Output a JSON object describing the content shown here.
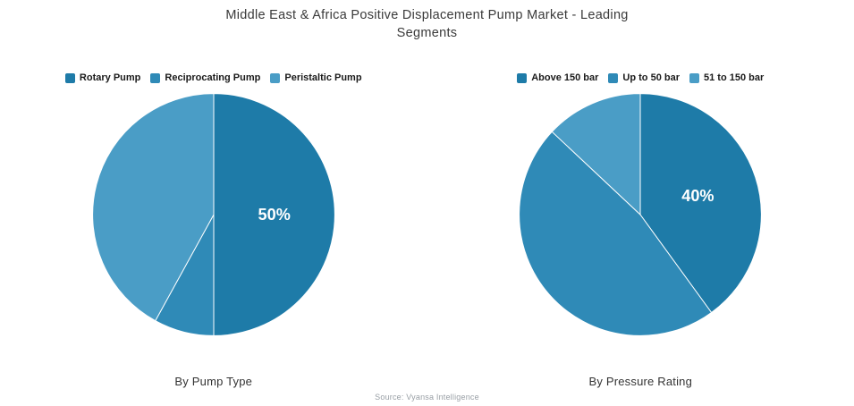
{
  "page": {
    "title": "Middle East & Africa Positive Displacement Pump Market - Leading Segments"
  },
  "footer": {
    "source": "Source: Vyansa Intelligence"
  },
  "chart_data": [
    {
      "type": "pie",
      "name": "By Pump Type",
      "labels": [
        "Rotary Pump",
        "Reciprocating Pump",
        "Peristaltic Pump"
      ],
      "values": [
        50,
        8,
        42
      ],
      "colors": [
        "#1e7ba8",
        "#2f8ab7",
        "#4a9dc6"
      ],
      "shown_data_labels": [
        "50%",
        null,
        null
      ],
      "data_label_color": "#ffffff",
      "start_angle_deg": 0,
      "direction": "clockwise",
      "legend_position": "top"
    },
    {
      "type": "pie",
      "name": "By Pressure Rating",
      "labels": [
        "Above 150 bar",
        "Up to 50 bar",
        "51 to 150 bar"
      ],
      "values": [
        40,
        47,
        13
      ],
      "colors": [
        "#1e7ba8",
        "#2f8ab7",
        "#4a9dc6"
      ],
      "shown_data_labels": [
        "40%",
        null,
        null
      ],
      "data_label_color": "#ffffff",
      "start_angle_deg": 0,
      "direction": "clockwise",
      "legend_position": "top"
    }
  ]
}
